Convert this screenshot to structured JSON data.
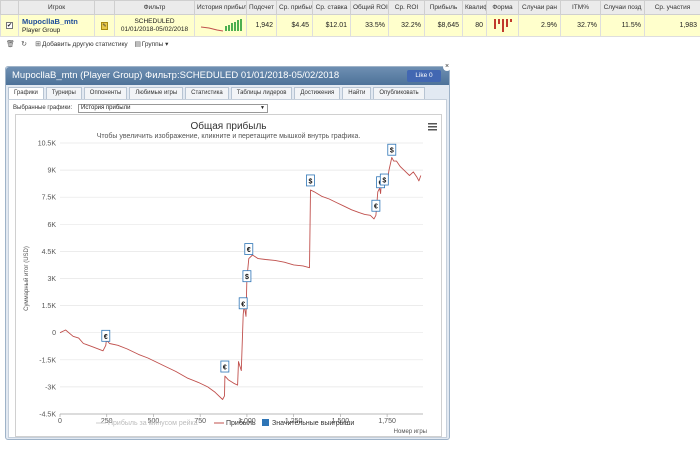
{
  "table": {
    "headers": [
      "",
      "Игрок",
      "",
      "Фильтр",
      "История прибыл",
      "Подсчет",
      "Ср. прибыл",
      "Ср. ставка",
      "Общий ROI",
      "Ср. ROI",
      "Прибыль",
      "Квалиф",
      "Форма",
      "Случаи ран",
      "ITM%",
      "Случаи позд",
      "Ср. участия"
    ],
    "row": {
      "checkbox": "✔",
      "player_name": "MupocllaB_mtn",
      "player_group": "Player Group",
      "filter_line1": "SCHEDULED",
      "filter_line2": "01/01/2018-05/02/2018",
      "count": "1,942",
      "avg_profit": "$4.45",
      "avg_stake": "$12.01",
      "total_roi": "33.5%",
      "avg_roi": "32.2%",
      "profit": "$8,645",
      "qualify": "80",
      "early_cases": "2.9%",
      "itm": "32.7%",
      "late_cases": "11.5%",
      "avg_entries": "1,983"
    }
  },
  "toolbar": {
    "add_stats": "Добавить другую статистику",
    "groups": "Группы"
  },
  "panel": {
    "title": "MupocllaB_mtn (Player Group) Фильтр:SCHEDULED 01/01/2018-05/02/2018",
    "like": "Like 0",
    "tabs": [
      "Графики",
      "Турниры",
      "Оппоненты",
      "Любимые игры",
      "Статистика",
      "Таблицы лидеров",
      "Достижения",
      "Найти",
      "Опубликовать"
    ],
    "chart_select_label": "Выбранные графики:",
    "chart_select_value": "История прибыли"
  },
  "colors": {
    "profit_line": "#c0504d",
    "excl_rake_line": "#e0e0e0",
    "big_win": "#2e75b6"
  },
  "chart_data": {
    "type": "line",
    "title": "Общая прибыль",
    "subtitle": "Чтобы увеличить изображение, кликните и перетащите мышкой внутрь графика.",
    "xlabel": "Номер игры",
    "ylabel": "Суммарный итог (USD)",
    "xlim": [
      0,
      1942
    ],
    "ylim": [
      -4500,
      10500
    ],
    "x_ticks": [
      0,
      250,
      500,
      750,
      1000,
      1250,
      1500,
      1750
    ],
    "x_tick_labels": [
      "0",
      "250",
      "500",
      "750",
      "1,000",
      "1,250",
      "1,500",
      "1,750"
    ],
    "y_ticks": [
      -4500,
      -3000,
      -1500,
      0,
      1500,
      3000,
      4500,
      6000,
      7500,
      9000,
      10500
    ],
    "y_tick_labels": [
      "-4.5K",
      "-3K",
      "-1.5K",
      "0",
      "1.5K",
      "3K",
      "4.5K",
      "6K",
      "7.5K",
      "9K",
      "10.5K"
    ],
    "grid": "horizontal",
    "legend": [
      "Прибыль за минусом рейка",
      "Прибыль",
      "Значительные выигрыши"
    ],
    "legend_position": "bottom",
    "series": [
      {
        "name": "Прибыль",
        "x": [
          0,
          30,
          70,
          100,
          125,
          140,
          180,
          230,
          245,
          248,
          265,
          310,
          360,
          420,
          470,
          520,
          570,
          620,
          680,
          740,
          790,
          830,
          870,
          880,
          882,
          900,
          930,
          950,
          955,
          970,
          980,
          985,
          995,
          1000,
          1010,
          1030,
          1060,
          1100,
          1150,
          1200,
          1250,
          1300,
          1335,
          1340,
          1360,
          1400,
          1440,
          1480,
          1520,
          1560,
          1600,
          1630,
          1660,
          1680,
          1690,
          1700,
          1710,
          1715,
          1720,
          1730,
          1740,
          1750,
          1760,
          1775,
          1785,
          1800,
          1820,
          1840,
          1870,
          1890,
          1910,
          1920,
          1930
        ],
        "y": [
          0,
          150,
          -200,
          -300,
          -600,
          -650,
          -800,
          -1000,
          -700,
          -400,
          -600,
          -700,
          -900,
          -1200,
          -1400,
          -1650,
          -1900,
          -2150,
          -2500,
          -2750,
          -3000,
          -3300,
          -3700,
          -3500,
          -2400,
          -2600,
          -2800,
          -2900,
          -1600,
          -2100,
          1000,
          1500,
          900,
          3000,
          4100,
          4300,
          4100,
          4050,
          4000,
          3900,
          3750,
          3700,
          3600,
          7900,
          7800,
          7550,
          7400,
          7200,
          7000,
          6800,
          6650,
          6550,
          6500,
          6300,
          6500,
          7800,
          8000,
          7700,
          8500,
          8100,
          8300,
          8300,
          9000,
          9700,
          9500,
          9500,
          9200,
          9000,
          8700,
          8900,
          8600,
          8400,
          8700
        ]
      }
    ],
    "big_wins": [
      {
        "x": 245,
        "y": -200,
        "symbol": "€"
      },
      {
        "x": 882,
        "y": -1900,
        "symbol": "€"
      },
      {
        "x": 980,
        "y": 1600,
        "symbol": "€"
      },
      {
        "x": 1000,
        "y": 3100,
        "symbol": "$"
      },
      {
        "x": 1010,
        "y": 4600,
        "symbol": "€"
      },
      {
        "x": 1340,
        "y": 8400,
        "symbol": "$"
      },
      {
        "x": 1690,
        "y": 7000,
        "symbol": "€"
      },
      {
        "x": 1715,
        "y": 8300,
        "symbol": "€"
      },
      {
        "x": 1735,
        "y": 8450,
        "symbol": "$"
      },
      {
        "x": 1775,
        "y": 10100,
        "symbol": "$"
      }
    ]
  }
}
